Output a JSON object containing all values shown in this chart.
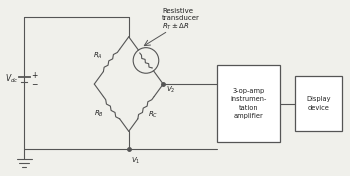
{
  "bg_color": "#f0f0eb",
  "line_color": "#555555",
  "text_color": "#222222",
  "fig_width": 3.5,
  "fig_height": 1.76,
  "dpi": 100,
  "amp_label": "3-op-amp\ninstrumen-\ntation\namplifier",
  "display_label": "Display\ndevice"
}
